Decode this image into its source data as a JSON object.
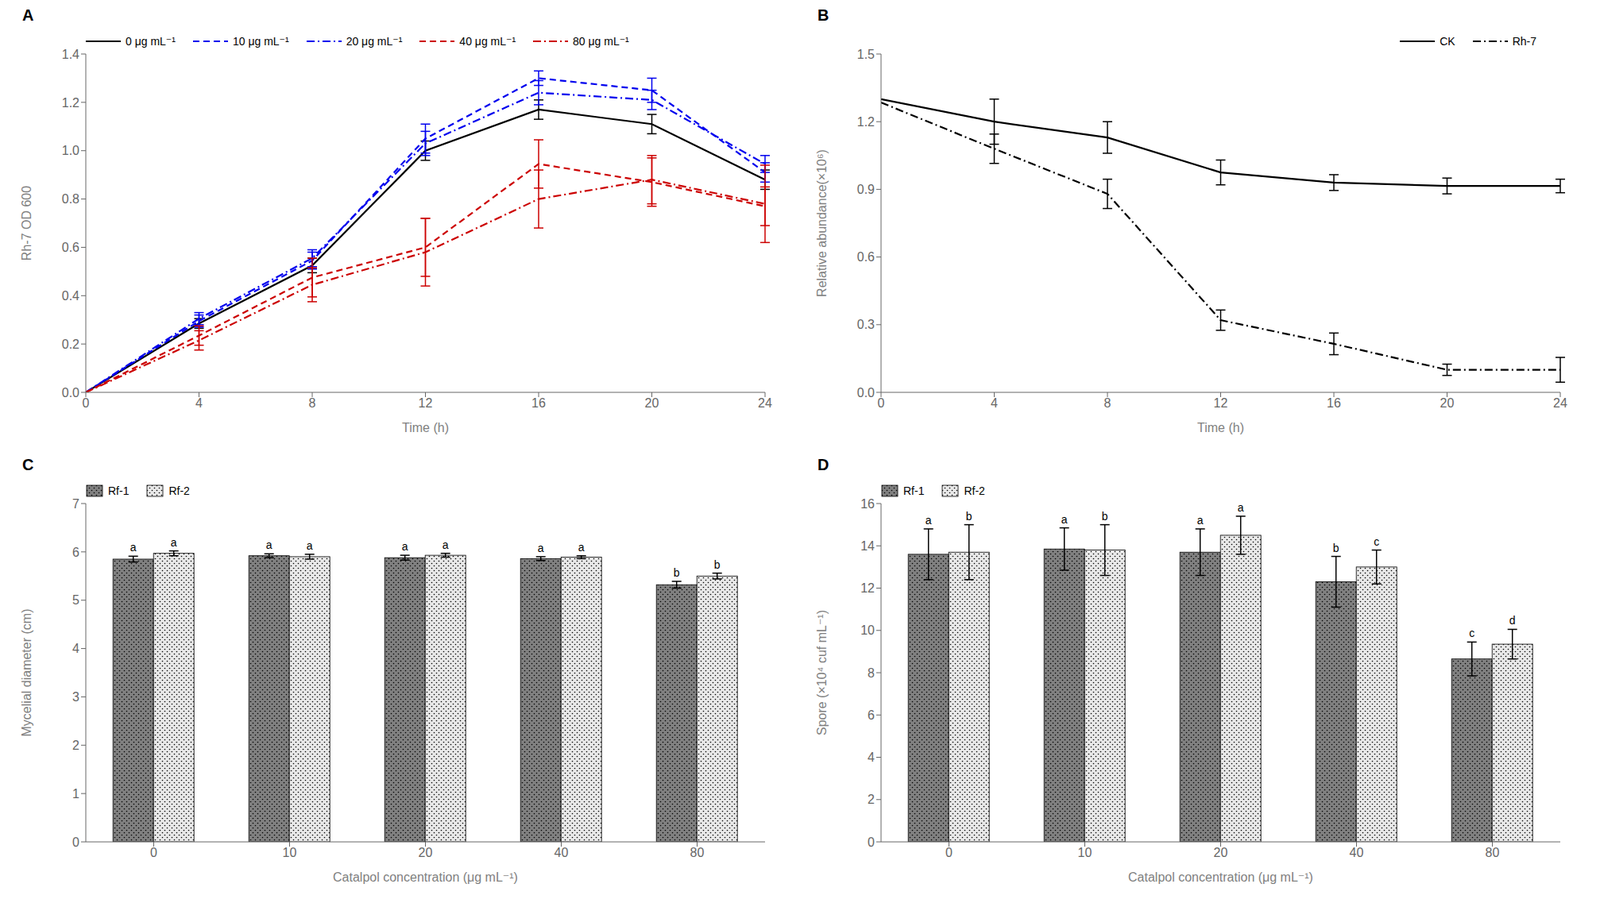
{
  "chart_data": [
    {
      "type": "line",
      "title": "A",
      "x": [
        0,
        4,
        8,
        12,
        16,
        20,
        24
      ],
      "xlabel": "Time (h)",
      "ylabel": "Rh-7 OD 600",
      "xlim": [
        0,
        24
      ],
      "ylim": [
        0,
        1.4
      ],
      "xticks": [
        0,
        4,
        8,
        12,
        16,
        20,
        24
      ],
      "yticks": [
        {
          "value": 0,
          "label": "0.0"
        },
        0.2,
        0.4,
        0.6,
        0.8,
        {
          "value": 1.0,
          "label": "1.0"
        },
        1.2,
        1.4
      ],
      "grid": false,
      "legend": "upper left",
      "series": [
        {
          "name": "0 μg mL⁻¹",
          "color": "#000000",
          "line_style": "solid",
          "values": [
            0,
            0.285,
            0.525,
            1.0,
            1.17,
            1.11,
            0.88
          ],
          "errors": [
            0,
            0.02,
            0.03,
            0.04,
            0.04,
            0.04,
            0.04
          ]
        },
        {
          "name": "10 μg mL⁻¹",
          "color": "#0000ee",
          "line_style": "dashed",
          "values": [
            0,
            0.295,
            0.545,
            1.05,
            1.3,
            1.25,
            0.91
          ],
          "errors": [
            0,
            0.025,
            0.035,
            0.06,
            0.03,
            0.05,
            0.04
          ]
        },
        {
          "name": "20 μg mL⁻¹",
          "color": "#0000ee",
          "line_style": "dashdot",
          "values": [
            0,
            0.305,
            0.555,
            1.03,
            1.24,
            1.21,
            0.945
          ],
          "errors": [
            0,
            0.025,
            0.035,
            0.05,
            0.05,
            0.04,
            0.035
          ]
        },
        {
          "name": "40 μg mL⁻¹",
          "color": "#cc0000",
          "line_style": "dashed",
          "values": [
            0,
            0.235,
            0.475,
            0.6,
            0.945,
            0.87,
            0.77
          ],
          "errors": [
            0,
            0.04,
            0.08,
            0.12,
            0.1,
            0.1,
            0.08
          ]
        },
        {
          "name": "80 μg mL⁻¹",
          "color": "#cc0000",
          "line_style": "dashdot",
          "values": [
            0,
            0.215,
            0.445,
            0.58,
            0.8,
            0.88,
            0.78
          ],
          "errors": [
            0,
            0.04,
            0.07,
            0.14,
            0.12,
            0.1,
            0.16
          ]
        }
      ]
    },
    {
      "type": "line",
      "title": "B",
      "x": [
        0,
        4,
        8,
        12,
        16,
        20,
        24
      ],
      "xlabel": "Time (h)",
      "ylabel": "Relative abundance(×10⁶)",
      "xlim": [
        0,
        24
      ],
      "ylim": [
        0,
        1.5
      ],
      "xticks": [
        0,
        4,
        8,
        12,
        16,
        20,
        24
      ],
      "yticks": [
        {
          "value": 0,
          "label": "0.0"
        },
        0.3,
        0.6,
        0.9,
        1.2,
        1.5
      ],
      "grid": false,
      "legend": "upper right",
      "series": [
        {
          "name": "CK",
          "color": "#000000",
          "line_style": "solid",
          "values": [
            1.3,
            1.2,
            1.13,
            0.975,
            0.93,
            0.915,
            0.915
          ],
          "errors": [
            0.0,
            0.1,
            0.07,
            0.055,
            0.035,
            0.035,
            0.03
          ]
        },
        {
          "name": "Rh-7",
          "color": "#000000",
          "line_style": "dashdot",
          "values": [
            1.285,
            1.08,
            0.88,
            0.32,
            0.215,
            0.1,
            0.1
          ],
          "errors": [
            0.0,
            0.065,
            0.065,
            0.045,
            0.048,
            0.025,
            0.055
          ]
        }
      ]
    },
    {
      "type": "bar",
      "title": "C",
      "categories": [
        "0",
        "10",
        "20",
        "40",
        "80"
      ],
      "xlabel": "Catalpol concentration (μg mL⁻¹)",
      "ylabel": "Mycelial diameter (cm)",
      "ylim": [
        0,
        7
      ],
      "yticks": [
        0,
        1,
        2,
        3,
        4,
        5,
        6,
        7
      ],
      "grid": false,
      "legend": "upper left",
      "series": [
        {
          "name": "Rf-1",
          "color": "#808080",
          "values": [
            5.85,
            5.92,
            5.88,
            5.86,
            5.32
          ],
          "errors": [
            0.06,
            0.04,
            0.05,
            0.04,
            0.07
          ],
          "letters": [
            "a",
            "a",
            "a",
            "a",
            "b"
          ]
        },
        {
          "name": "Rf-2",
          "color": "#e8e8e8",
          "values": [
            5.97,
            5.9,
            5.93,
            5.89,
            5.5
          ],
          "errors": [
            0.05,
            0.05,
            0.04,
            0.03,
            0.06
          ],
          "letters": [
            "a",
            "a",
            "a",
            "a",
            "b"
          ]
        }
      ]
    },
    {
      "type": "bar",
      "title": "D",
      "categories": [
        "0",
        "10",
        "20",
        "40",
        "80"
      ],
      "xlabel": "Catalpol concentration (μg mL⁻¹)",
      "ylabel": "Spore (×10⁴ cuf mL⁻¹)",
      "ylim": [
        0,
        16
      ],
      "yticks": [
        0,
        2,
        4,
        6,
        8,
        10,
        12,
        14,
        16
      ],
      "grid": false,
      "legend": "upper left",
      "series": [
        {
          "name": "Rf-1",
          "color": "#808080",
          "values": [
            13.6,
            13.85,
            13.7,
            12.3,
            8.65
          ],
          "errors": [
            1.2,
            1.0,
            1.1,
            1.2,
            0.8
          ],
          "letters": [
            "a",
            "a",
            "a",
            "b",
            "c"
          ]
        },
        {
          "name": "Rf-2",
          "color": "#e8e8e8",
          "values": [
            13.7,
            13.8,
            14.5,
            13.0,
            9.35
          ],
          "errors": [
            1.3,
            1.2,
            0.9,
            0.8,
            0.7
          ],
          "letters": [
            "b",
            "b",
            "a",
            "c",
            "d"
          ]
        }
      ]
    }
  ]
}
